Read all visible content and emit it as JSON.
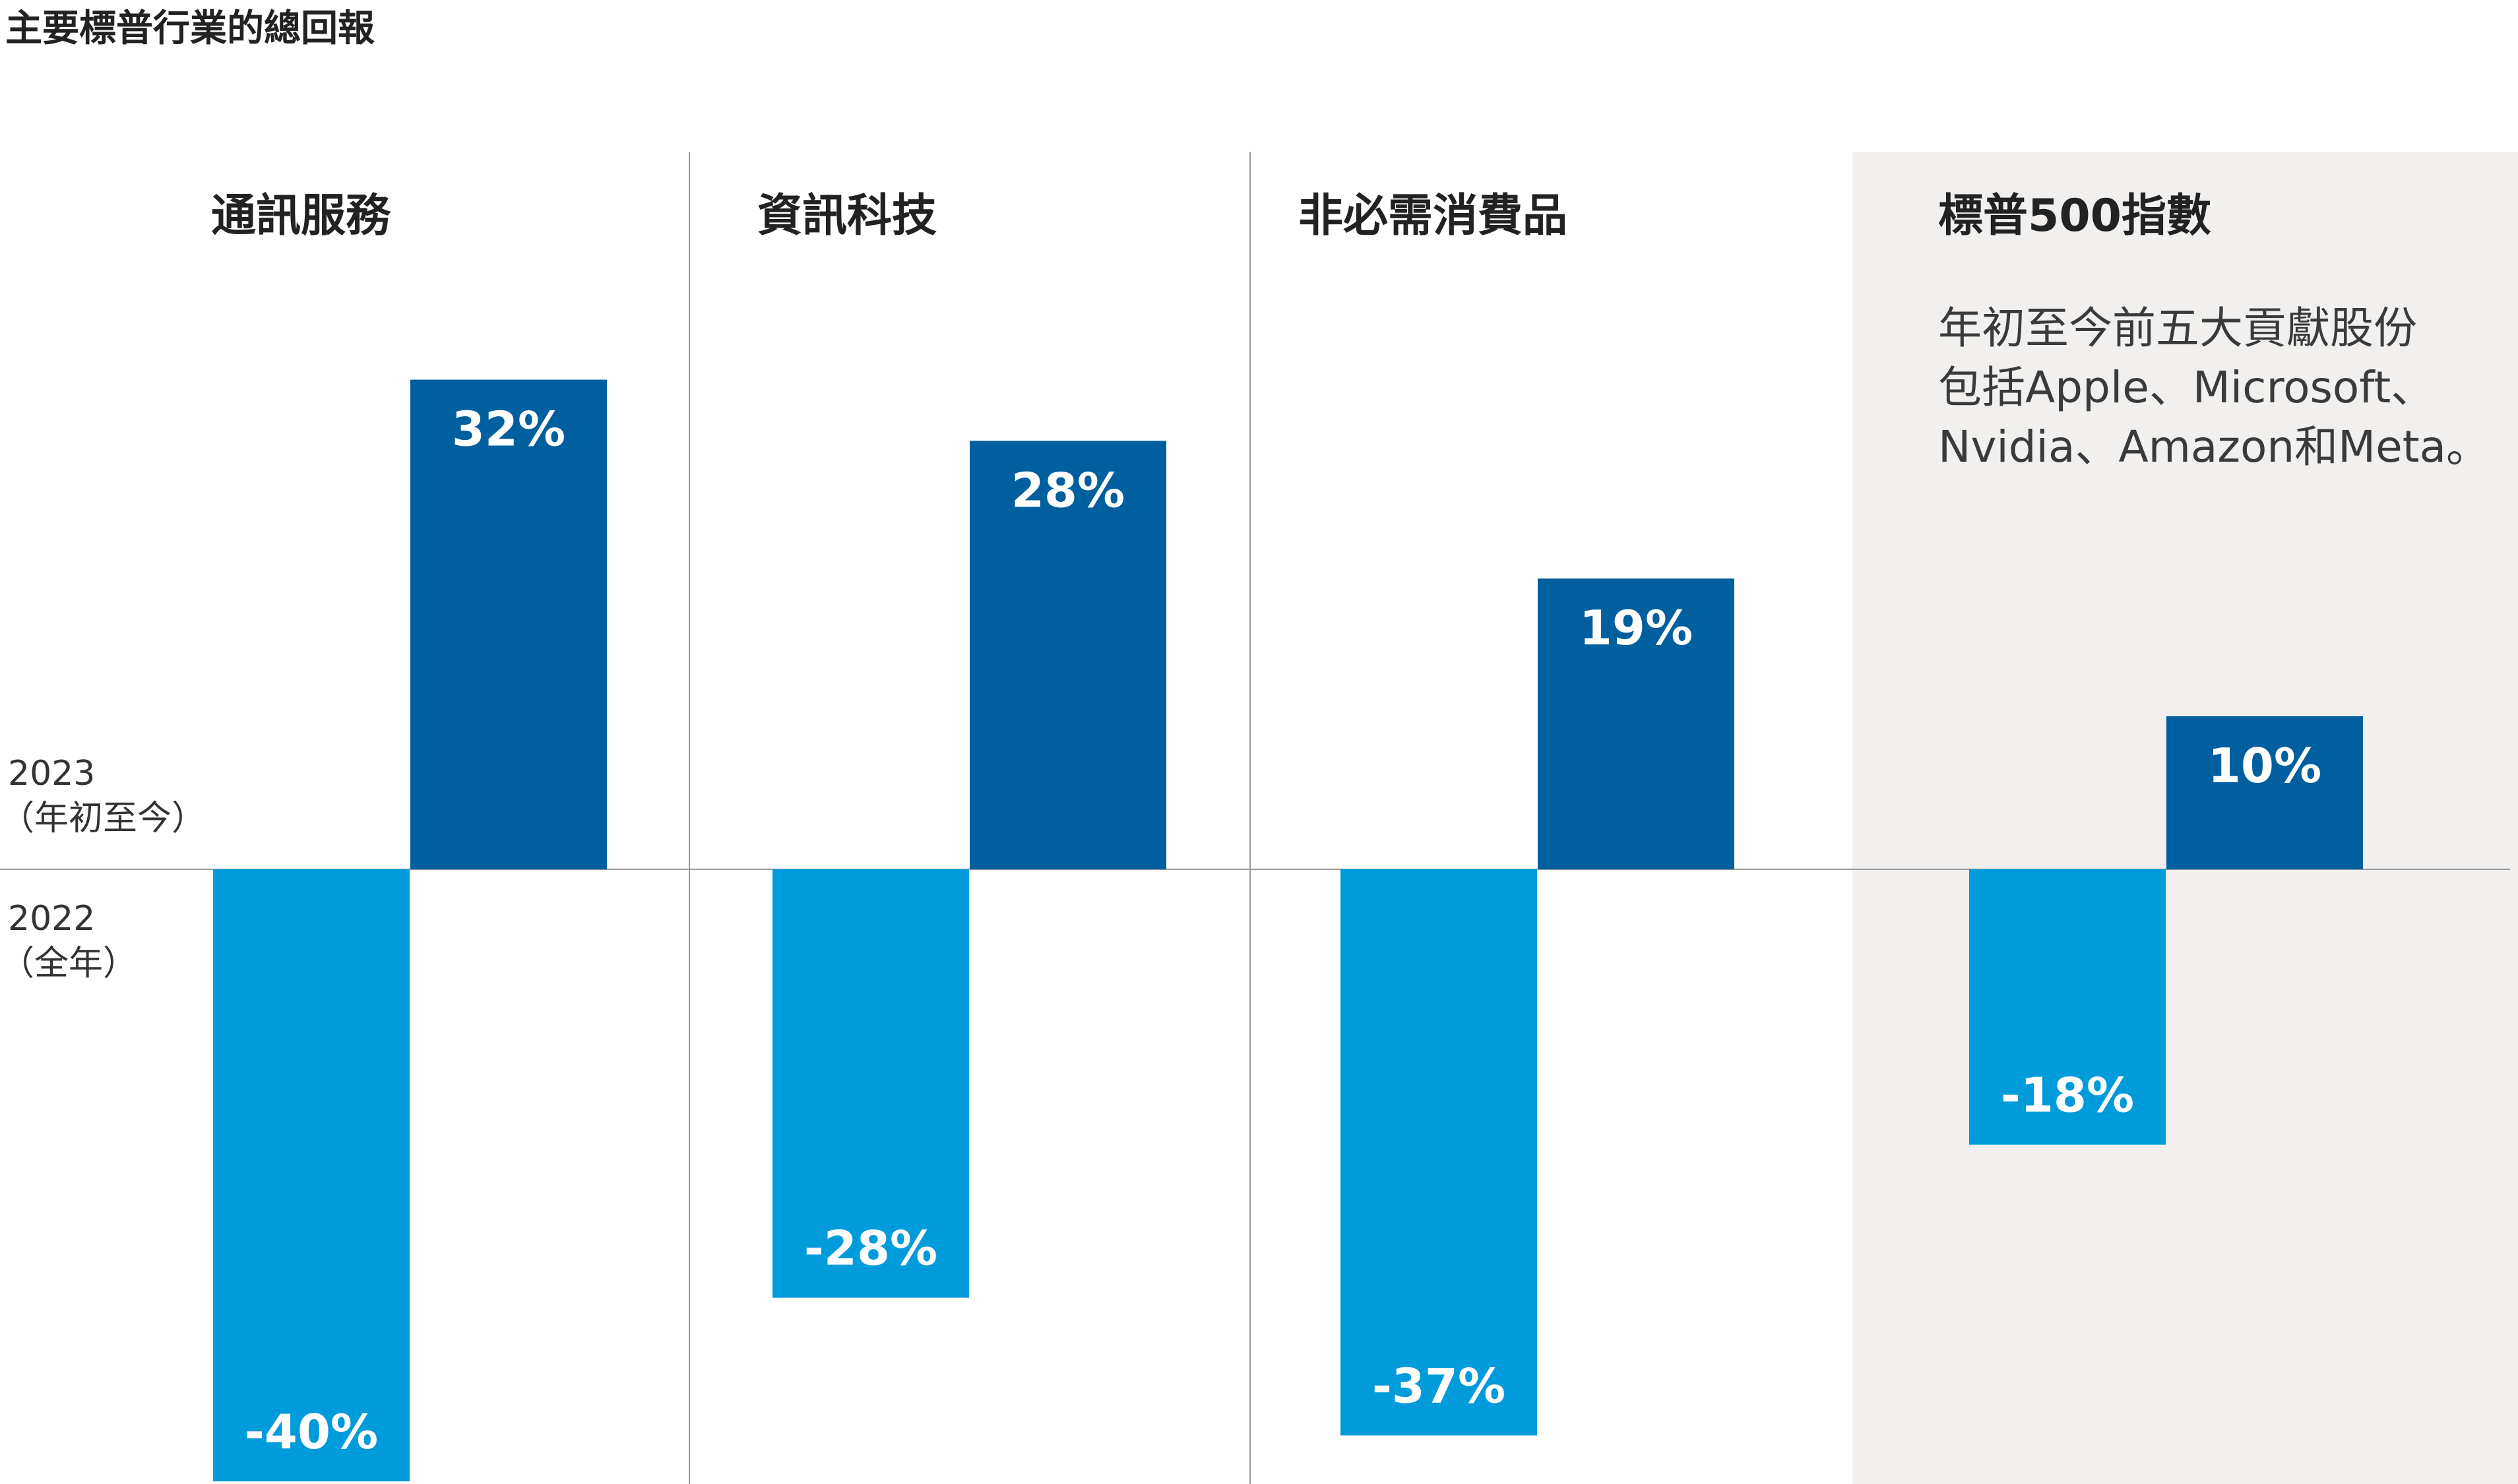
{
  "title": "主要標普行業的總回報",
  "colors": {
    "series_2023": "#005f9e",
    "series_2022": "#009bdb",
    "highlight_panel": "#f1f0ee",
    "divider": "#9a9a9a",
    "baseline": "#9a9a9a",
    "value_text": "#ffffff"
  },
  "series_labels": [
    {
      "year": "2023",
      "note": "（年初至今）"
    },
    {
      "year": "2022",
      "note": "（全年）"
    }
  ],
  "sp500_note": [
    "年初至今前五大貢獻股份",
    "包括Apple、Microsoft、",
    "Nvidia、Amazon和Meta。"
  ],
  "chart_data": {
    "type": "bar",
    "title": "主要標普行業的總回報",
    "categories": [
      "通訊服務",
      "資訊科技",
      "非必需消費品",
      "標普500指數"
    ],
    "series": [
      {
        "name": "2022（全年）",
        "values": [
          -40,
          -28,
          -37,
          -18
        ],
        "labels": [
          "-40%",
          "-28%",
          "-37%",
          "-18%"
        ]
      },
      {
        "name": "2023（年初至今）",
        "values": [
          32,
          28,
          19,
          10
        ],
        "labels": [
          "32%",
          "28%",
          "19%",
          "10%"
        ]
      }
    ],
    "ylim": [
      -40,
      32
    ],
    "grid": false,
    "legend": "left"
  }
}
